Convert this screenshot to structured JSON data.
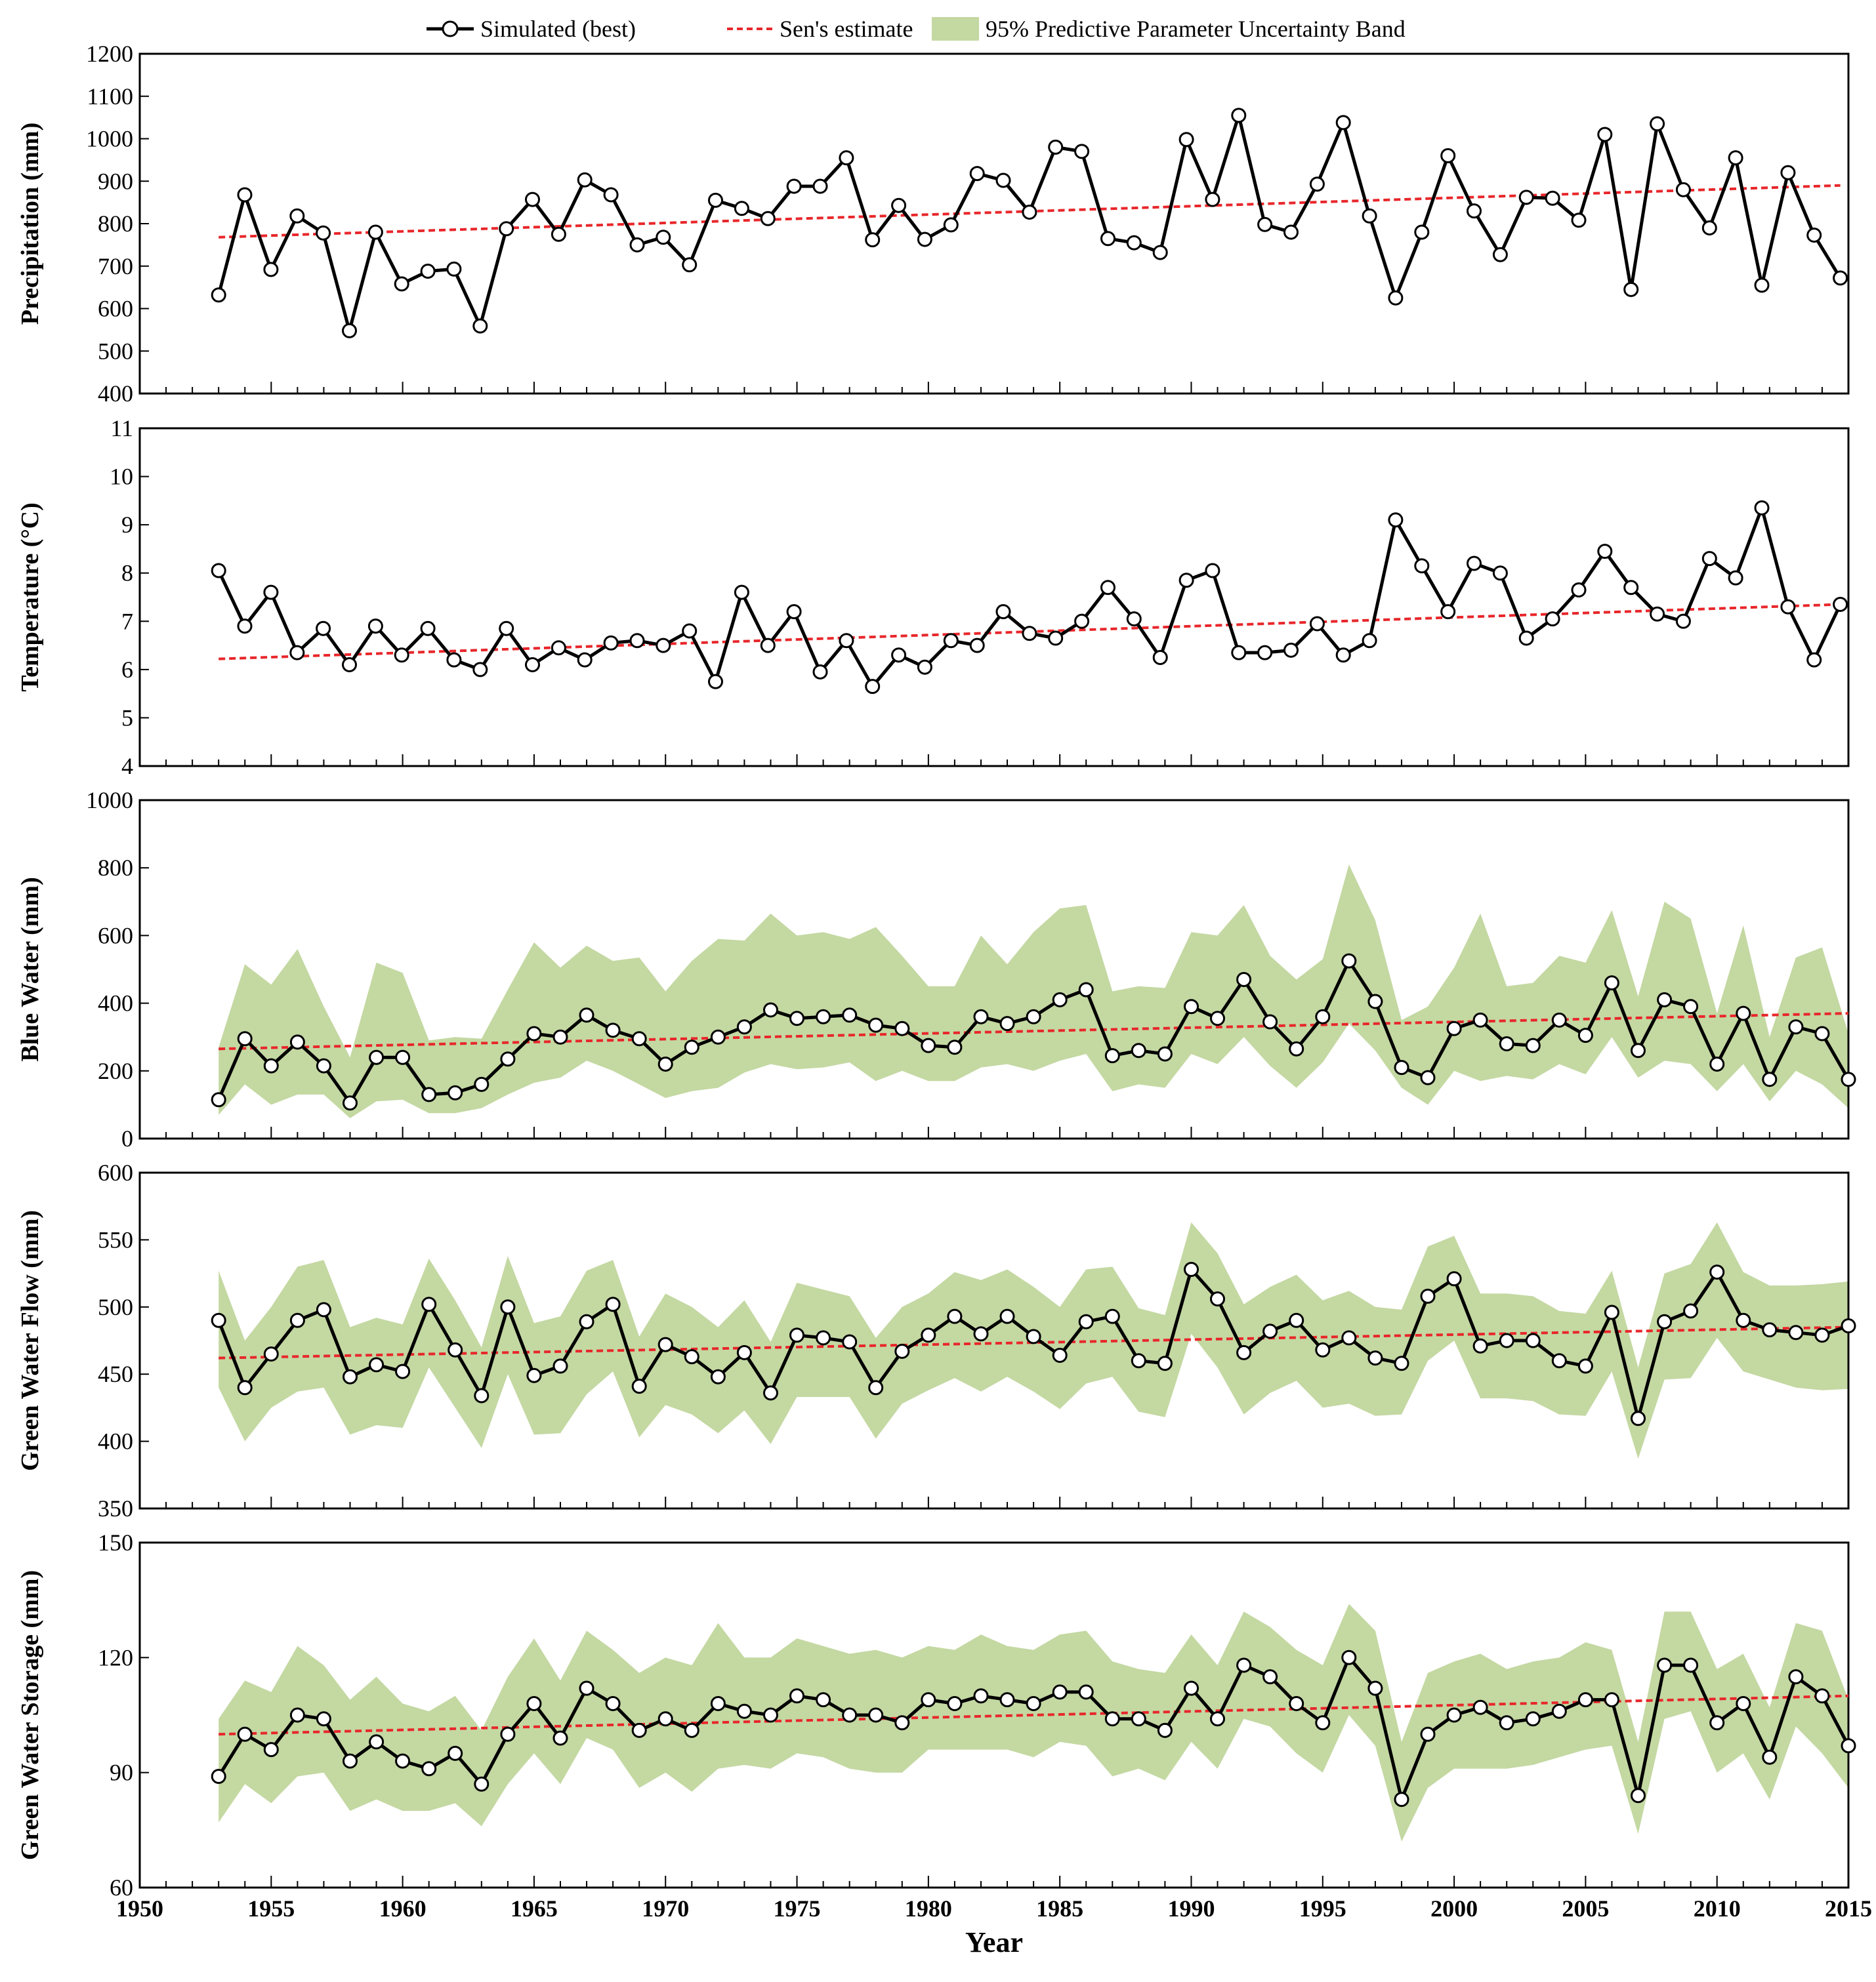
{
  "chart_data": {
    "type": "line",
    "xlabel": "Year",
    "xlim": [
      1950,
      2015
    ],
    "xticks": [
      1950,
      1955,
      1960,
      1965,
      1970,
      1975,
      1980,
      1985,
      1990,
      1995,
      2000,
      2005,
      2010,
      2015
    ],
    "legend": {
      "position": "top-center",
      "entries": [
        "Simulated (best)",
        "Sen's estimate",
        "95% Predictive Parameter Uncertainty Band"
      ]
    },
    "colors": {
      "line": "#000000",
      "marker_fill": "#ffffff",
      "trend": "#e8262a",
      "band": "#c4d8a2"
    },
    "panels": [
      {
        "ylabel": "Precipitation (mm)",
        "ylim": [
          400,
          1200
        ],
        "yticks": [
          400,
          500,
          600,
          700,
          800,
          900,
          1000,
          1100,
          1200
        ],
        "x_start": 1953,
        "x_step": 0.995,
        "values": [
          632,
          868,
          692,
          818,
          778,
          548,
          780,
          658,
          688,
          693,
          559,
          788,
          857,
          775,
          903,
          868,
          750,
          768,
          703,
          855,
          836,
          812,
          888,
          888,
          955,
          762,
          843,
          763,
          797,
          918,
          902,
          827,
          980,
          970,
          765,
          755,
          732,
          998,
          857,
          1055,
          798,
          780,
          893,
          1038,
          818,
          625,
          780,
          960,
          830,
          727,
          862,
          860,
          808,
          1010,
          645,
          1035,
          880,
          790,
          955,
          655,
          920,
          773,
          672
        ],
        "trend": [
          768,
          890
        ],
        "band": null
      },
      {
        "ylabel": "Temperature (°C)",
        "ylim": [
          4,
          11
        ],
        "yticks": [
          4,
          5,
          6,
          7,
          8,
          9,
          10,
          11
        ],
        "x_start": 1953,
        "x_step": 0.995,
        "values": [
          8.05,
          6.9,
          7.6,
          6.35,
          6.85,
          6.1,
          6.9,
          6.3,
          6.85,
          6.2,
          6.0,
          6.85,
          6.1,
          6.45,
          6.2,
          6.55,
          6.6,
          6.5,
          6.8,
          5.75,
          7.6,
          6.5,
          7.2,
          5.95,
          6.6,
          5.65,
          6.3,
          6.05,
          6.6,
          6.5,
          7.2,
          6.75,
          6.65,
          7.0,
          7.7,
          7.05,
          6.25,
          7.85,
          8.05,
          6.35,
          6.35,
          6.4,
          6.95,
          6.3,
          6.6,
          9.1,
          8.15,
          7.2,
          8.2,
          8.0,
          6.65,
          7.05,
          7.65,
          8.45,
          7.7,
          7.15,
          7.0,
          8.3,
          7.9,
          9.35,
          7.3,
          6.2,
          7.35
        ],
        "trend": [
          6.22,
          7.35
        ],
        "band": null
      },
      {
        "ylabel": "Blue Water (mm)",
        "ylim": [
          0,
          1000
        ],
        "yticks": [
          0,
          200,
          400,
          600,
          800,
          1000
        ],
        "x_start": 1953,
        "x_step": 1.0,
        "values": [
          115,
          295,
          215,
          285,
          215,
          105,
          240,
          240,
          130,
          135,
          160,
          235,
          310,
          300,
          365,
          320,
          295,
          220,
          270,
          300,
          330,
          380,
          355,
          360,
          365,
          335,
          325,
          275,
          270,
          360,
          340,
          360,
          410,
          440,
          245,
          260,
          250,
          390,
          355,
          470,
          345,
          265,
          360,
          525,
          405,
          210,
          180,
          325,
          350,
          280,
          275,
          350,
          305,
          460,
          260,
          410,
          390,
          220,
          370,
          175,
          330,
          310,
          175
        ],
        "trend": [
          265,
          370
        ],
        "band": {
          "lower": [
            70,
            160,
            100,
            130,
            130,
            60,
            110,
            115,
            75,
            75,
            90,
            130,
            165,
            180,
            230,
            200,
            160,
            120,
            140,
            150,
            195,
            220,
            205,
            210,
            225,
            170,
            200,
            170,
            170,
            210,
            220,
            200,
            230,
            250,
            140,
            160,
            150,
            250,
            220,
            300,
            215,
            150,
            225,
            340,
            260,
            150,
            100,
            200,
            170,
            185,
            175,
            220,
            190,
            300,
            180,
            230,
            220,
            140,
            220,
            110,
            200,
            160,
            90
          ],
          "upper": [
            270,
            515,
            455,
            560,
            390,
            240,
            520,
            490,
            290,
            300,
            295,
            440,
            580,
            505,
            570,
            525,
            535,
            435,
            525,
            590,
            585,
            665,
            600,
            610,
            590,
            625,
            540,
            450,
            450,
            600,
            515,
            610,
            680,
            690,
            435,
            450,
            445,
            610,
            600,
            690,
            540,
            470,
            530,
            810,
            645,
            350,
            390,
            505,
            665,
            450,
            460,
            540,
            520,
            675,
            420,
            700,
            650,
            370,
            630,
            300,
            535,
            565,
            310
          ]
        }
      },
      {
        "ylabel": "Green Water Flow (mm)",
        "ylim": [
          350,
          600
        ],
        "yticks": [
          350,
          400,
          450,
          500,
          550,
          600
        ],
        "x_start": 1953,
        "x_step": 1.0,
        "values": [
          490,
          440,
          465,
          490,
          498,
          448,
          457,
          452,
          502,
          468,
          434,
          500,
          449,
          456,
          489,
          502,
          441,
          472,
          463,
          448,
          466,
          436,
          479,
          477,
          474,
          440,
          467,
          479,
          493,
          480,
          493,
          478,
          464,
          489,
          493,
          460,
          458,
          528,
          506,
          466,
          482,
          490,
          468,
          477,
          462,
          458,
          508,
          521,
          471,
          475,
          475,
          460,
          456,
          496,
          417,
          489,
          497,
          526,
          490,
          483,
          481,
          479,
          486
        ],
        "trend": [
          462,
          485
        ],
        "band": {
          "lower": [
            440,
            400,
            425,
            437,
            440,
            405,
            412,
            410,
            455,
            425,
            395,
            450,
            405,
            406,
            435,
            452,
            403,
            427,
            420,
            406,
            423,
            398,
            433,
            433,
            433,
            402,
            428,
            438,
            447,
            437,
            448,
            437,
            424,
            443,
            448,
            422,
            418,
            480,
            455,
            420,
            436,
            445,
            425,
            428,
            419,
            420,
            460,
            475,
            432,
            432,
            430,
            420,
            419,
            452,
            387,
            446,
            447,
            477,
            452,
            446,
            440,
            438,
            439
          ],
          "upper": [
            527,
            475,
            500,
            530,
            535,
            485,
            492,
            487,
            536,
            505,
            470,
            538,
            488,
            493,
            527,
            535,
            478,
            510,
            500,
            485,
            505,
            474,
            518,
            513,
            508,
            477,
            500,
            510,
            526,
            520,
            528,
            515,
            500,
            528,
            530,
            499,
            494,
            563,
            540,
            502,
            515,
            524,
            505,
            512,
            500,
            498,
            545,
            553,
            510,
            510,
            508,
            497,
            495,
            527,
            455,
            525,
            532,
            563,
            526,
            516,
            516,
            517,
            519
          ]
        }
      },
      {
        "ylabel": "Green Water Storage (mm)",
        "ylim": [
          60,
          150
        ],
        "yticks": [
          60,
          90,
          120,
          150
        ],
        "x_start": 1953,
        "x_step": 1.0,
        "values": [
          89,
          100,
          96,
          105,
          104,
          93,
          98,
          93,
          91,
          95,
          87,
          100,
          108,
          99,
          112,
          108,
          101,
          104,
          101,
          108,
          106,
          105,
          110,
          109,
          105,
          105,
          103,
          109,
          108,
          110,
          109,
          108,
          111,
          111,
          104,
          104,
          101,
          112,
          104,
          118,
          115,
          108,
          103,
          120,
          112,
          83,
          100,
          105,
          107,
          103,
          104,
          106,
          109,
          109,
          84,
          118,
          118,
          103,
          108,
          94,
          115,
          110,
          97
        ],
        "trend": [
          100,
          110
        ],
        "band": {
          "lower": [
            77,
            87,
            82,
            89,
            90,
            80,
            83,
            80,
            80,
            82,
            76,
            87,
            95,
            87,
            99,
            96,
            86,
            90,
            85,
            91,
            92,
            91,
            95,
            94,
            91,
            90,
            90,
            96,
            96,
            96,
            96,
            94,
            98,
            97,
            89,
            91,
            88,
            98,
            91,
            104,
            102,
            95,
            90,
            105,
            97,
            72,
            86,
            91,
            91,
            91,
            92,
            94,
            96,
            97,
            74,
            104,
            106,
            90,
            95,
            83,
            102,
            95,
            86
          ],
          "upper": [
            104,
            114,
            111,
            123,
            118,
            109,
            115,
            108,
            106,
            110,
            101,
            115,
            125,
            114,
            127,
            122,
            116,
            120,
            118,
            129,
            120,
            120,
            125,
            123,
            121,
            122,
            120,
            123,
            122,
            126,
            123,
            122,
            126,
            127,
            119,
            117,
            116,
            126,
            118,
            132,
            128,
            122,
            118,
            134,
            127,
            98,
            116,
            119,
            121,
            117,
            119,
            120,
            124,
            122,
            98,
            132,
            132,
            117,
            121,
            107,
            129,
            127,
            109
          ]
        }
      }
    ]
  }
}
